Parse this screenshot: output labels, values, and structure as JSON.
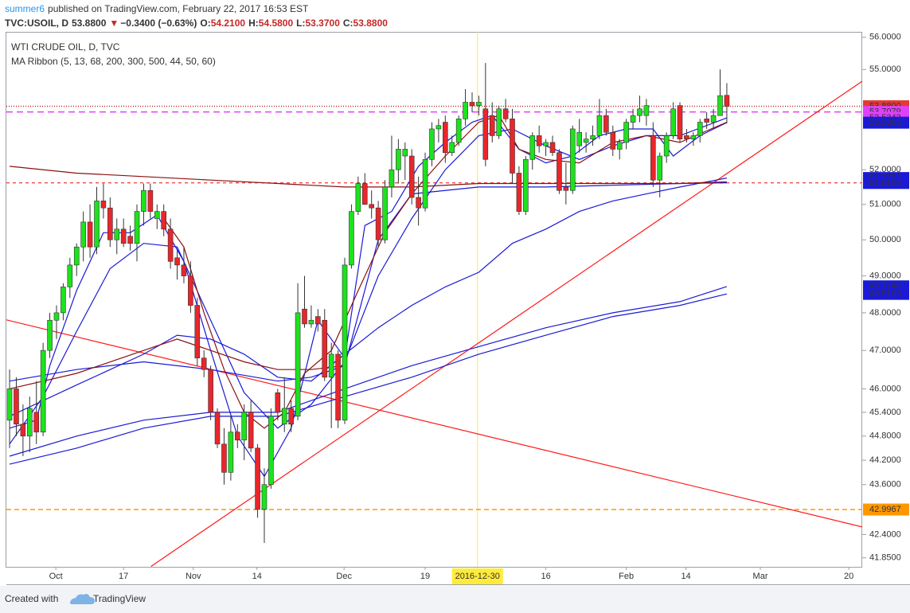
{
  "header": {
    "user": "summer6",
    "published": "published on TradingView.com, February 22, 2017 16:53 EST",
    "symbol": "TVC:USOIL, D",
    "last": "53.8800",
    "arrow": "▼",
    "change": "−0.3400 (−0.63%)",
    "ohlc": [
      {
        "key": "O:",
        "value": "54.2100"
      },
      {
        "key": "H:",
        "value": "54.5800"
      },
      {
        "key": "L:",
        "value": "53.3700"
      },
      {
        "key": "C:",
        "value": "53.8800"
      }
    ]
  },
  "footer": {
    "created": "Created with",
    "brand": "TradingView"
  },
  "chart_data": {
    "type": "candlestick",
    "title": "WTI CRUDE OIL, D, TVC",
    "subtitle": "MA Ribbon (5, 13, 68, 200, 300, 500, 44, 50, 60)",
    "log_scale": true,
    "grid": false,
    "ylim": [
      41.64,
      56.17
    ],
    "xlim": [
      -0.48,
      127.2
    ],
    "yticks": [
      {
        "value": 56,
        "label": "56.0000"
      },
      {
        "value": 55,
        "label": "55.0000"
      },
      {
        "value": 52,
        "label": "52.0000"
      },
      {
        "value": 51,
        "label": "51.0000"
      },
      {
        "value": 50,
        "label": "50.0000"
      },
      {
        "value": 49,
        "label": "49.0000"
      },
      {
        "value": 48,
        "label": "48.0000"
      },
      {
        "value": 47,
        "label": "47.0000"
      },
      {
        "value": 46,
        "label": "46.0000"
      },
      {
        "value": 45.4,
        "label": "45.4000"
      },
      {
        "value": 44.8,
        "label": "44.8000"
      },
      {
        "value": 44.2,
        "label": "44.2000"
      },
      {
        "value": 43.6,
        "label": "43.6000"
      },
      {
        "value": 42.4,
        "label": "42.4000"
      },
      {
        "value": 41.85,
        "label": "41.8500"
      }
    ],
    "xticks": [
      {
        "value": 6.9,
        "label": "Oct"
      },
      {
        "value": 17.0,
        "label": "17"
      },
      {
        "value": 27.4,
        "label": "Nov"
      },
      {
        "value": 36.9,
        "label": "14"
      },
      {
        "value": 49.9,
        "label": "Dec"
      },
      {
        "value": 62.0,
        "label": "19"
      },
      {
        "value": 80.0,
        "label": "16"
      },
      {
        "value": 92.0,
        "label": "Feb"
      },
      {
        "value": 100.9,
        "label": "14"
      },
      {
        "value": 112.0,
        "label": "Mar"
      },
      {
        "value": 125.2,
        "label": "20"
      }
    ],
    "crosshair": {
      "x": 69.8,
      "label": "2016-12-30",
      "color": "#ffeb3b"
    },
    "up_color": "#1de21d",
    "down_color": "#e8262b",
    "wick_color": "#333333",
    "open": [
      45.2,
      46.0,
      45.1,
      44.8,
      45.4,
      44.9,
      47.0,
      47.8,
      48.0,
      48.7,
      49.3,
      49.8,
      50.5,
      49.8,
      51.1,
      50.9,
      50.0,
      50.3,
      50.1,
      49.9,
      50.8,
      51.4,
      50.6,
      50.8,
      50.3,
      49.5,
      49.3,
      49.0,
      48.2,
      46.8,
      46.5,
      45.4,
      44.6,
      43.9,
      44.9,
      44.7,
      45.4,
      44.5,
      43.0,
      43.6,
      45.9,
      45.1,
      45.5,
      45.3,
      48.1,
      47.7,
      47.9,
      47.8,
      46.3,
      46.9,
      45.2,
      49.3,
      50.8,
      51.6,
      51.0,
      50.9,
      50.0,
      51.5,
      52.0,
      52.4,
      52.4,
      51.2,
      50.9,
      52.3,
      53.2,
      53.4,
      52.5,
      52.8,
      53.5,
      54.0,
      53.9,
      53.8,
      53.6,
      53.0,
      53.8,
      53.5,
      51.9,
      50.8,
      52.3,
      53.0,
      52.7,
      52.8,
      52.5,
      51.5,
      51.4,
      52.7,
      52.8,
      52.9,
      53.0,
      53.6,
      53.1,
      52.6,
      52.8,
      53.4,
      53.6,
      53.6,
      53.0,
      51.7,
      52.4,
      53.0,
      53.9,
      53.0,
      52.9,
      53.0,
      53.5,
      53.4,
      53.6,
      54.21
    ],
    "high": [
      46.5,
      46.3,
      45.6,
      45.8,
      46.2,
      47.2,
      48.0,
      48.2,
      48.8,
      49.5,
      49.9,
      50.8,
      51.0,
      51.5,
      51.6,
      51.2,
      50.6,
      50.6,
      50.4,
      51.0,
      51.6,
      51.6,
      51.0,
      51.0,
      50.6,
      49.7,
      49.8,
      49.4,
      48.4,
      47.0,
      46.6,
      45.5,
      45.0,
      45.3,
      45.1,
      45.6,
      45.7,
      44.6,
      44.0,
      45.5,
      46.0,
      46.3,
      45.7,
      48.8,
      49.0,
      48.2,
      48.1,
      48.1,
      47.2,
      47.0,
      49.5,
      51.0,
      51.8,
      51.9,
      51.4,
      51.1,
      51.7,
      53.0,
      52.9,
      52.8,
      52.6,
      51.8,
      52.5,
      53.4,
      53.5,
      53.6,
      53.0,
      53.6,
      54.4,
      54.3,
      54.2,
      55.2,
      54.0,
      53.9,
      54.1,
      53.8,
      52.1,
      52.4,
      53.1,
      53.3,
      52.9,
      53.0,
      52.6,
      52.2,
      53.3,
      53.5,
      53.1,
      53.3,
      54.1,
      53.8,
      53.3,
      52.9,
      53.5,
      53.8,
      54.2,
      54.1,
      53.4,
      52.5,
      53.1,
      54.0,
      54.0,
      53.2,
      53.1,
      53.5,
      53.7,
      53.8,
      55.0,
      54.58
    ],
    "low": [
      44.5,
      44.8,
      44.3,
      44.4,
      44.6,
      44.8,
      46.8,
      47.3,
      47.8,
      48.4,
      49.0,
      49.4,
      49.5,
      49.6,
      50.6,
      49.8,
      49.6,
      49.8,
      49.7,
      49.4,
      50.4,
      50.6,
      50.3,
      50.1,
      49.2,
      48.9,
      48.8,
      48.0,
      46.6,
      46.3,
      45.2,
      44.5,
      43.6,
      43.7,
      44.5,
      44.2,
      44.4,
      42.8,
      42.2,
      43.5,
      45.2,
      44.9,
      44.9,
      45.2,
      47.6,
      47.6,
      47.5,
      46.2,
      45.0,
      45.0,
      45.1,
      49.2,
      50.7,
      51.0,
      50.6,
      49.8,
      49.9,
      51.2,
      51.6,
      51.7,
      51.0,
      50.4,
      50.8,
      52.1,
      52.8,
      52.2,
      52.4,
      52.7,
      53.3,
      53.7,
      53.6,
      52.1,
      52.8,
      52.9,
      53.4,
      51.6,
      50.7,
      50.7,
      52.0,
      52.5,
      52.4,
      52.4,
      51.3,
      51.0,
      51.3,
      52.5,
      52.5,
      52.7,
      52.9,
      53.0,
      52.4,
      52.3,
      52.6,
      53.2,
      53.4,
      53.3,
      51.5,
      51.2,
      52.2,
      52.9,
      52.8,
      52.8,
      52.7,
      52.8,
      53.2,
      53.2,
      53.6,
      53.37
    ],
    "close": [
      46.0,
      45.1,
      44.8,
      45.5,
      44.9,
      47.0,
      47.8,
      48.0,
      48.7,
      49.3,
      49.8,
      50.5,
      49.8,
      51.1,
      50.9,
      50.0,
      50.3,
      49.9,
      49.9,
      50.8,
      51.4,
      50.8,
      50.8,
      50.3,
      49.4,
      49.3,
      49.0,
      48.2,
      46.8,
      46.5,
      45.4,
      44.6,
      43.9,
      44.9,
      44.7,
      45.4,
      44.5,
      43.0,
      43.6,
      45.3,
      45.4,
      45.5,
      45.1,
      48.0,
      47.7,
      47.8,
      47.7,
      46.3,
      46.9,
      45.2,
      49.3,
      50.8,
      51.6,
      51.0,
      50.9,
      50.0,
      51.5,
      52.0,
      52.6,
      52.6,
      51.2,
      50.9,
      52.3,
      53.2,
      53.3,
      52.5,
      52.8,
      53.5,
      54.0,
      53.9,
      54.0,
      52.3,
      53.0,
      53.8,
      53.5,
      51.9,
      50.8,
      52.3,
      53.0,
      52.7,
      52.8,
      52.5,
      51.4,
      51.4,
      53.2,
      53.1,
      52.9,
      53.0,
      53.6,
      53.1,
      52.6,
      52.8,
      53.4,
      53.6,
      53.8,
      53.9,
      51.7,
      52.4,
      53.0,
      53.8,
      52.9,
      52.9,
      53.0,
      53.4,
      53.4,
      53.6,
      54.2,
      53.88
    ],
    "lines": [
      {
        "color": "#1a1ad6",
        "x": [
          0,
          4,
          6,
          10,
          14,
          18,
          22,
          26,
          30,
          34,
          38,
          42,
          46,
          50,
          53,
          57,
          61,
          65,
          69,
          72,
          76,
          80,
          84,
          88,
          92,
          96,
          99,
          103,
          107
        ],
        "values": [
          45.0,
          45.2,
          46.6,
          48.6,
          50.2,
          50.2,
          50.7,
          49.4,
          47.0,
          44.8,
          43.8,
          45.0,
          47.8,
          46.8,
          50.4,
          50.8,
          52.1,
          52.8,
          53.4,
          53.6,
          52.6,
          52.2,
          52.4,
          53.0,
          53.2,
          53.2,
          52.4,
          53.0,
          53.39
        ]
      },
      {
        "color": "#1a1ad6",
        "x": [
          0,
          5,
          10,
          15,
          20,
          25,
          30,
          35,
          40,
          45,
          50,
          55,
          60,
          65,
          70,
          75,
          80,
          85,
          90,
          95,
          100,
          107
        ],
        "values": [
          44.6,
          45.8,
          47.5,
          49.2,
          49.9,
          49.8,
          47.8,
          45.9,
          45.0,
          45.6,
          46.7,
          49.0,
          50.6,
          52.0,
          53.0,
          53.2,
          52.7,
          52.3,
          52.7,
          53.0,
          53.0,
          53.53
        ]
      },
      {
        "color": "#1a1ad6",
        "x": [
          0,
          10,
          20,
          25,
          30,
          35,
          40,
          45,
          50,
          55,
          60,
          65,
          70,
          75,
          80,
          85,
          90,
          95,
          100,
          107
        ],
        "values": [
          45.3,
          46.1,
          46.9,
          47.4,
          47.3,
          46.9,
          46.3,
          46.2,
          46.9,
          47.6,
          48.2,
          48.7,
          49.1,
          49.9,
          50.3,
          50.8,
          51.1,
          51.3,
          51.5,
          51.76
        ]
      },
      {
        "color": "#1a1ad6",
        "x": [
          0,
          10,
          20,
          30,
          40,
          45,
          50,
          55,
          60,
          70,
          80,
          90,
          100,
          107
        ],
        "values": [
          46.2,
          46.5,
          46.7,
          46.5,
          46.2,
          46.3,
          46.6,
          50.0,
          51.3,
          51.5,
          51.5,
          51.55,
          51.6,
          51.62
        ]
      },
      {
        "color": "#1a1ad6",
        "x": [
          0,
          10,
          20,
          30,
          40,
          50,
          60,
          70,
          80,
          90,
          100,
          107
        ],
        "values": [
          44.3,
          44.8,
          45.2,
          45.4,
          45.4,
          46.0,
          46.6,
          47.1,
          47.6,
          48.0,
          48.3,
          48.71
        ]
      },
      {
        "color": "#1a1ad6",
        "x": [
          0,
          10,
          20,
          30,
          40,
          50,
          60,
          70,
          80,
          90,
          100,
          107
        ],
        "values": [
          44.1,
          44.5,
          45.0,
          45.3,
          45.3,
          45.8,
          46.3,
          46.9,
          47.4,
          47.9,
          48.2,
          48.51
        ]
      },
      {
        "color": "#8b1010",
        "x": [
          0,
          10,
          20,
          30,
          40,
          50,
          60,
          70,
          80,
          90,
          100,
          107
        ],
        "values": [
          52.1,
          51.9,
          51.8,
          51.7,
          51.6,
          51.5,
          51.5,
          51.6,
          51.6,
          51.6,
          51.6,
          51.65
        ]
      },
      {
        "color": "#8b1010",
        "x": [
          23,
          26,
          29,
          32,
          35,
          38,
          41,
          44,
          48,
          52,
          56,
          60,
          65,
          70,
          73,
          76,
          80,
          85,
          90,
          95,
          100,
          107
        ],
        "values": [
          50.6,
          49.8,
          48.0,
          46.5,
          45.4,
          45.0,
          45.4,
          46.4,
          47.0,
          48.6,
          50.2,
          51.3,
          52.4,
          53.4,
          53.6,
          52.6,
          52.3,
          52.2,
          52.8,
          53.0,
          52.8,
          53.4
        ]
      },
      {
        "color": "#8b1010",
        "x": [
          0,
          10,
          20,
          25,
          30,
          35,
          40,
          45,
          50
        ],
        "values": [
          46.0,
          46.4,
          47.0,
          47.3,
          47.0,
          46.7,
          46.5,
          46.5,
          46.6
        ]
      }
    ],
    "hlines": [
      {
        "value": 53.88,
        "color": "#c62828",
        "dash": "1,2"
      },
      {
        "value": 53.7079,
        "color": "#e040fb",
        "dash": "8,5"
      },
      {
        "value": 51.62,
        "color": "#ef5350",
        "dash": "4,4"
      },
      {
        "value": 42.9967,
        "color": "#ff9800",
        "dash": "6,4"
      }
    ],
    "trendlines": [
      {
        "color": "#ff1a1a",
        "x": [
          -0.48,
          127.2
        ],
        "values": [
          47.81,
          42.58
        ]
      },
      {
        "color": "#ff1a1a",
        "x": [
          21.1,
          127.2
        ],
        "values": [
          41.65,
          54.64
        ]
      }
    ],
    "price_labels": [
      {
        "value": 53.88,
        "label": "53.8800",
        "color": "#e53935"
      },
      {
        "value": 53.7079,
        "label": "53.7079",
        "color": "#e040fb"
      },
      {
        "value": 53.5343,
        "label": "53.5343",
        "color": "#e040fb"
      },
      {
        "value": 53.3863,
        "label": "53.3863",
        "color": "#1a1ad6"
      },
      {
        "value": 51.7582,
        "label": "51.7582",
        "color": "#1a1ad6"
      },
      {
        "value": 51.6155,
        "label": "51.6155",
        "color": "#1a1ad6"
      },
      {
        "value": 48.7146,
        "label": "48.7146",
        "color": "#1a1ad6"
      },
      {
        "value": 48.5103,
        "label": "48.5103",
        "color": "#1a1ad6"
      },
      {
        "value": 42.9967,
        "label": "42.9967",
        "color": "#ff9800"
      }
    ]
  }
}
